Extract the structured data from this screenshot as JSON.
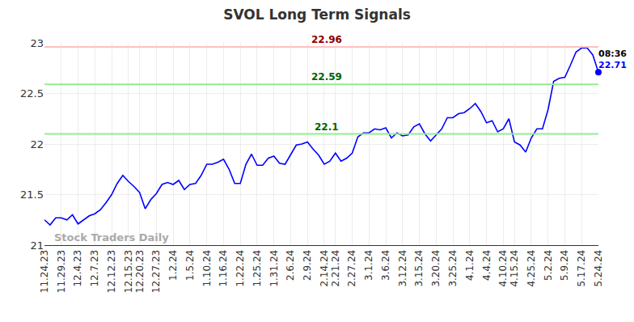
{
  "chart_data": {
    "type": "line",
    "title": "SVOL Long Term Signals",
    "watermark": "Stock Traders Daily",
    "categories": [
      "11.24.23",
      null,
      null,
      "11.29.23",
      null,
      null,
      "12.4.23",
      null,
      null,
      "12.7.23",
      null,
      null,
      "12.12.23",
      null,
      null,
      "12.15.23",
      null,
      "12.20.23",
      null,
      null,
      "12.27.23",
      null,
      null,
      "1.2.24",
      null,
      null,
      "1.5.24",
      null,
      null,
      "1.10.24",
      null,
      null,
      "1.16.24",
      null,
      null,
      "1.22.24",
      null,
      null,
      "1.25.24",
      null,
      null,
      "1.31.24",
      null,
      null,
      "2.6.24",
      null,
      null,
      "2.9.24",
      null,
      null,
      "2.14.24",
      null,
      "2.21.24",
      null,
      null,
      "2.27.24",
      null,
      null,
      "3.1.24",
      null,
      null,
      "3.6.24",
      null,
      null,
      "3.12.24",
      null,
      null,
      "3.15.24",
      null,
      null,
      "3.20.24",
      null,
      null,
      "3.25.24",
      null,
      null,
      "4.1.24",
      null,
      null,
      "4.4.24",
      null,
      null,
      "4.10.24",
      null,
      "4.15.24",
      null,
      null,
      "4.25.24",
      null,
      null,
      "5.2.24",
      null,
      null,
      "5.9.24",
      null,
      null,
      "5.17.24",
      null,
      null,
      "5.24.24"
    ],
    "series": [
      {
        "color": "#0000ff",
        "values": [
          21.25,
          21.2,
          21.27,
          21.27,
          21.25,
          21.3,
          21.21,
          21.25,
          21.29,
          21.31,
          21.35,
          21.42,
          21.5,
          21.61,
          21.69,
          21.63,
          21.58,
          21.52,
          21.36,
          21.45,
          21.51,
          21.6,
          21.62,
          21.6,
          21.64,
          21.55,
          21.6,
          21.61,
          21.69,
          21.8,
          21.8,
          21.82,
          21.85,
          21.75,
          21.61,
          21.61,
          21.8,
          21.9,
          21.79,
          21.79,
          21.86,
          21.88,
          21.81,
          21.8,
          21.89,
          21.99,
          22.0,
          22.02,
          21.95,
          21.89,
          21.8,
          21.83,
          21.91,
          21.83,
          21.86,
          21.91,
          22.07,
          22.11,
          22.11,
          22.15,
          22.14,
          22.16,
          22.06,
          22.11,
          22.08,
          22.09,
          22.17,
          22.2,
          22.1,
          22.03,
          22.09,
          22.15,
          22.26,
          22.26,
          22.3,
          22.31,
          22.35,
          22.4,
          22.32,
          22.21,
          22.23,
          22.12,
          22.15,
          22.25,
          22.02,
          21.99,
          21.92,
          22.06,
          22.15,
          22.15,
          22.34,
          22.62,
          22.65,
          22.66,
          22.78,
          22.91,
          22.95,
          22.95,
          22.88,
          22.71
        ]
      }
    ],
    "levels": [
      {
        "value": 22.96,
        "label": "22.96",
        "color": "#ffc0c0",
        "label_color": "#8b0000"
      },
      {
        "value": 22.59,
        "label": "22.59",
        "color": "#90ee90",
        "label_color": "#006400"
      },
      {
        "value": 22.1,
        "label": "22.1",
        "color": "#90ee90",
        "label_color": "#006400"
      }
    ],
    "last_point": {
      "time": "08:36",
      "label": "22.71"
    },
    "ylim": [
      21,
      23
    ],
    "yticks": [
      21,
      21.5,
      22,
      22.5,
      23
    ],
    "grid": true
  }
}
